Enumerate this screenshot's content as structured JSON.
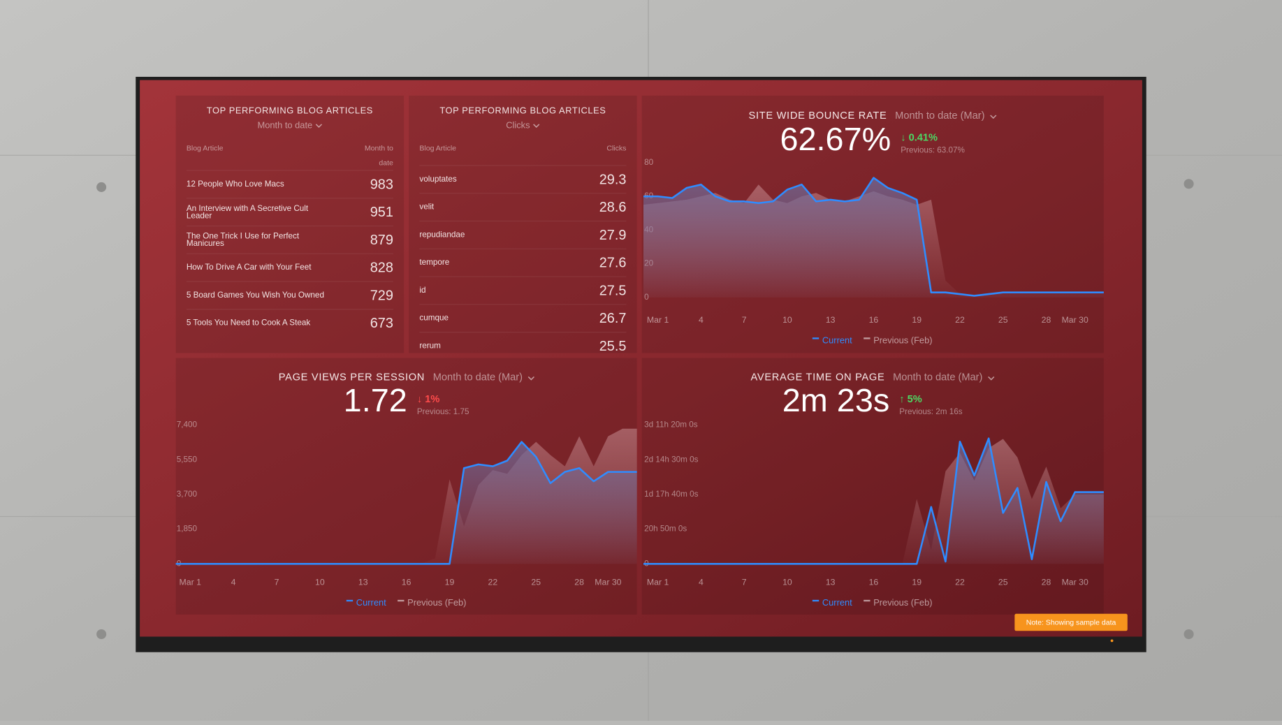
{
  "tables": [
    {
      "title": "TOP PERFORMING BLOG ARTICLES",
      "subtitle": "Month to date",
      "columns": [
        "Blog Article",
        "Month to date"
      ],
      "rows": [
        [
          "12 People Who Love Macs",
          "983"
        ],
        [
          "An Interview with A Secretive Cult Leader",
          "951"
        ],
        [
          "The One Trick I Use for Perfect Manicures",
          "879"
        ],
        [
          "How To Drive A Car with Your Feet",
          "828"
        ],
        [
          "5 Board Games You Wish You Owned",
          "729"
        ],
        [
          "5 Tools You Need to Cook A Steak",
          "673"
        ]
      ]
    },
    {
      "title": "TOP PERFORMING BLOG ARTICLES",
      "subtitle": "Clicks",
      "columns": [
        "Blog Article",
        "Clicks"
      ],
      "rows": [
        [
          "voluptates",
          "29.3"
        ],
        [
          "velit",
          "28.6"
        ],
        [
          "repudiandae",
          "27.9"
        ],
        [
          "tempore",
          "27.6"
        ],
        [
          "id",
          "27.5"
        ],
        [
          "cumque",
          "26.7"
        ],
        [
          "rerum",
          "25.5"
        ]
      ]
    }
  ],
  "chart_data": [
    {
      "type": "line",
      "title": "SITE WIDE BOUNCE RATE",
      "subtitle": "Month to date (Mar)",
      "value": "62.67%",
      "change": "↓ 0.41%",
      "change_color": "#4cd964",
      "previous": "Previous: 63.07%",
      "categories": [
        null,
        "Mar 1",
        null,
        null,
        "4",
        null,
        null,
        "7",
        null,
        null,
        "10",
        null,
        null,
        "13",
        null,
        null,
        "16",
        null,
        null,
        "19",
        null,
        null,
        "22",
        null,
        null,
        "25",
        null,
        null,
        "28",
        null,
        "Mar 30",
        null,
        null
      ],
      "ylim": [
        0,
        80
      ],
      "yticks": [
        0,
        20,
        40,
        60,
        80
      ],
      "grid": false,
      "series": [
        {
          "name": "Current",
          "color": "#2f8cff",
          "values": [
            60,
            60,
            59,
            65,
            67,
            60,
            57,
            57,
            56,
            57,
            64,
            67,
            57,
            58,
            57,
            58,
            71,
            65,
            62,
            58,
            3,
            3,
            2,
            1,
            2,
            3,
            3,
            3,
            3,
            3,
            3,
            3,
            3
          ]
        },
        {
          "name": "Previous (Feb)",
          "color": "#c9a0a6",
          "values": [
            55,
            56,
            57,
            58,
            60,
            62,
            58,
            56,
            67,
            58,
            56,
            60,
            62,
            58,
            57,
            60,
            63,
            60,
            58,
            55,
            58,
            10,
            2,
            2,
            2,
            2,
            2,
            2,
            2,
            2,
            2,
            2,
            2
          ]
        }
      ]
    },
    {
      "type": "line",
      "title": "PAGE VIEWS PER SESSION",
      "subtitle": "Month to date (Mar)",
      "value": "1.72",
      "change": "↓ 1%",
      "change_color": "#ff4b4b",
      "previous": "Previous: 1.75",
      "categories": [
        null,
        "Mar 1",
        null,
        null,
        "4",
        null,
        null,
        "7",
        null,
        null,
        "10",
        null,
        null,
        "13",
        null,
        null,
        "16",
        null,
        null,
        "19",
        null,
        null,
        "22",
        null,
        null,
        "25",
        null,
        null,
        "28",
        null,
        "Mar 30",
        null,
        null
      ],
      "ylim": [
        0,
        7400
      ],
      "yticks": [
        0,
        {
          "value": 1850,
          "label": "1,850"
        },
        {
          "value": 3700,
          "label": "3,700"
        },
        {
          "value": 5550,
          "label": "5,550"
        },
        {
          "value": 7400,
          "label": "7,400"
        }
      ],
      "grid": false,
      "series": [
        {
          "name": "Current",
          "color": "#2f8cff",
          "values": [
            0,
            0,
            0,
            0,
            0,
            0,
            0,
            0,
            0,
            0,
            0,
            0,
            0,
            0,
            0,
            0,
            0,
            0,
            0,
            0,
            5100,
            5300,
            5200,
            5500,
            6500,
            5700,
            4300,
            4900,
            5100,
            4400,
            4900,
            4900,
            4900
          ]
        },
        {
          "name": "Previous (Feb)",
          "color": "#c9a0a6",
          "values": [
            0,
            0,
            0,
            0,
            0,
            0,
            0,
            0,
            0,
            0,
            0,
            0,
            0,
            0,
            0,
            0,
            0,
            0,
            300,
            4500,
            2000,
            4200,
            5000,
            4800,
            5800,
            6500,
            5800,
            5200,
            6800,
            5200,
            6800,
            7200,
            7200
          ]
        }
      ]
    },
    {
      "type": "line",
      "title": "AVERAGE TIME ON PAGE",
      "subtitle": "Month to date (Mar)",
      "value": "2m 23s",
      "change": "↑ 5%",
      "change_color": "#4cd964",
      "previous": "Previous: 2m 16s",
      "categories": [
        null,
        "Mar 1",
        null,
        null,
        "4",
        null,
        null,
        "7",
        null,
        null,
        "10",
        null,
        null,
        "13",
        null,
        null,
        "16",
        null,
        null,
        "19",
        null,
        null,
        "22",
        null,
        null,
        "25",
        null,
        null,
        "28",
        null,
        "Mar 30",
        null,
        null
      ],
      "ylim": [
        0,
        300000
      ],
      "yticks": [
        0,
        {
          "value": 75000,
          "label": "20h 50m 0s"
        },
        {
          "value": 150000,
          "label": "1d 17h 40m 0s"
        },
        {
          "value": 225000,
          "label": "2d 14h 30m 0s"
        },
        {
          "value": 300000,
          "label": "3d 11h 20m 0s"
        }
      ],
      "grid": false,
      "series": [
        {
          "name": "Current",
          "color": "#2f8cff",
          "values": [
            0,
            0,
            0,
            0,
            0,
            0,
            0,
            0,
            0,
            0,
            0,
            0,
            0,
            0,
            0,
            0,
            0,
            0,
            0,
            0,
            123000,
            5000,
            264000,
            191000,
            271000,
            110000,
            164000,
            10000,
            177000,
            92000,
            155000,
            155000,
            155000
          ]
        },
        {
          "name": "Previous (Feb)",
          "color": "#c9a0a6",
          "values": [
            0,
            0,
            0,
            0,
            0,
            0,
            0,
            0,
            0,
            0,
            0,
            0,
            0,
            0,
            0,
            0,
            0,
            0,
            0,
            140000,
            30000,
            200000,
            240000,
            180000,
            250000,
            270000,
            230000,
            140000,
            210000,
            120000,
            150000,
            150000,
            150000
          ]
        }
      ]
    }
  ],
  "note": "Note: Showing sample data"
}
